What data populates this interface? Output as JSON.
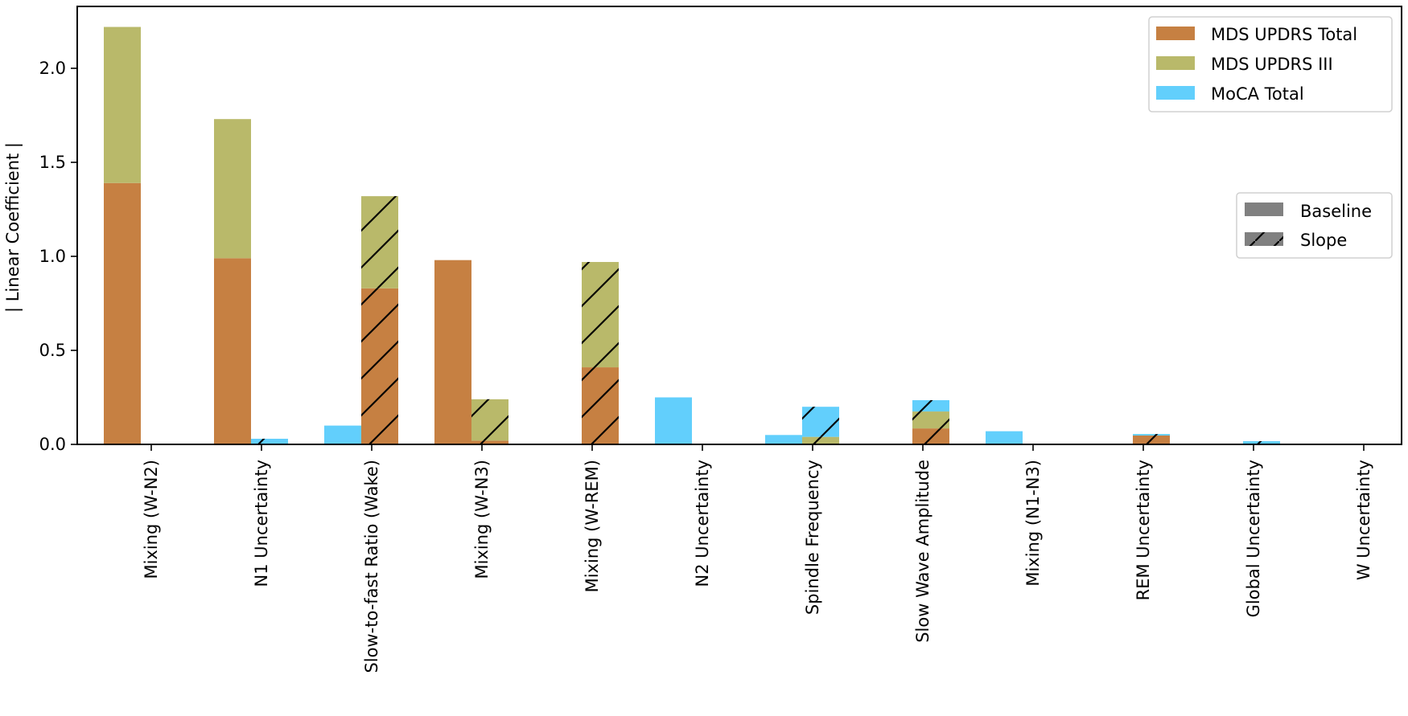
{
  "chart_data": {
    "type": "bar",
    "title": "",
    "xlabel": "",
    "ylabel": "| Linear Coefficient |",
    "ylim": [
      0,
      2.33
    ],
    "yticks": [
      0.0,
      0.5,
      1.0,
      1.5,
      2.0
    ],
    "ytick_labels": [
      "0.0",
      "0.5",
      "1.0",
      "1.5",
      "2.0"
    ],
    "grid": false,
    "stacked": true,
    "categories": [
      "Mixing (W-N2)",
      "N1 Uncertainty",
      "Slow-to-fast Ratio (Wake)",
      "Mixing (W-N3)",
      "Mixing (W-REM)",
      "N2 Uncertainty",
      "Spindle Frequency",
      "Slow Wave Amplitude",
      "Mixing (N1-N3)",
      "REM Uncertainty",
      "Global Uncertainty",
      "W Uncertainty"
    ],
    "groups": [
      {
        "name": "Baseline",
        "hatch": false
      },
      {
        "name": "Slope",
        "hatch": true
      }
    ],
    "series": [
      {
        "name": "MDS UPDRS Total",
        "color": "#c68042",
        "baseline": [
          1.39,
          0.99,
          0.0,
          0.98,
          0.0,
          0.0,
          0.0,
          0.0,
          0.0,
          0.0,
          0.0,
          0.0
        ],
        "slope": [
          0.0,
          0.0,
          0.83,
          0.02,
          0.41,
          0.0,
          0.0,
          0.085,
          0.0,
          0.047,
          0.0,
          0.0
        ]
      },
      {
        "name": "MDS UPDRS III",
        "color": "#b9b96a",
        "baseline": [
          0.83,
          0.74,
          0.0,
          0.0,
          0.0,
          0.0,
          0.0,
          0.0,
          0.0,
          0.0,
          0.0,
          0.0
        ],
        "slope": [
          0.0,
          0.0,
          0.49,
          0.22,
          0.56,
          0.0,
          0.04,
          0.09,
          0.0,
          0.0,
          0.0,
          0.0
        ]
      },
      {
        "name": "MoCA Total",
        "color": "#62cffc",
        "baseline": [
          0.0,
          0.0,
          0.1,
          0.0,
          0.0,
          0.25,
          0.05,
          0.0,
          0.07,
          0.0,
          0.0,
          0.0
        ],
        "slope": [
          0.0,
          0.03,
          0.0,
          0.0,
          0.0,
          0.0,
          0.16,
          0.06,
          0.0,
          0.008,
          0.017,
          0.0
        ]
      }
    ],
    "legends": [
      {
        "position": "upper right",
        "entries": [
          "MDS UPDRS Total",
          "MDS UPDRS III",
          "MoCA Total"
        ]
      },
      {
        "position": "center right",
        "entries": [
          "Baseline",
          "Slope"
        ]
      }
    ]
  },
  "legend_series": {
    "title": "",
    "items": [
      {
        "label": "MDS UPDRS Total",
        "color": "#c68042"
      },
      {
        "label": "MDS UPDRS III",
        "color": "#b9b96a"
      },
      {
        "label": "MoCA Total",
        "color": "#62cffc"
      }
    ]
  },
  "legend_type": {
    "items": [
      {
        "label": "Baseline",
        "hatch": false,
        "color": "#808080"
      },
      {
        "label": "Slope",
        "hatch": true,
        "color": "#808080"
      }
    ]
  },
  "axes": {
    "ylabel": "| Linear Coefficient |"
  }
}
